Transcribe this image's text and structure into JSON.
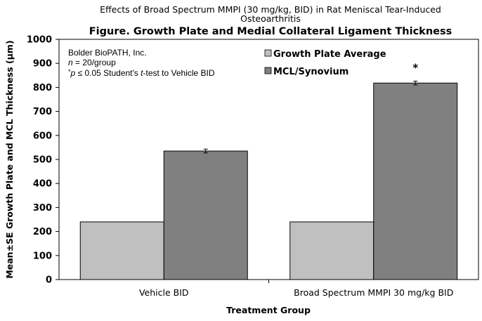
{
  "chart_data": {
    "type": "bar",
    "subtitle_lines": [
      "Effects of Broad Spectrum MMPI (30 mg/kg, BID) in Rat Meniscal Tear-Induced",
      "Osteoarthritis"
    ],
    "title": "Figure. Growth Plate and Medial Collateral Ligament Thickness",
    "xlabel": "Treatment Group",
    "ylabel": "Mean±SE Growth Plate and MCL Thickness (μm)",
    "ylim": [
      0,
      1000
    ],
    "yticks": [
      "0",
      "100",
      "200",
      "300",
      "400",
      "500",
      "600",
      "700",
      "800",
      "900",
      "1000"
    ],
    "categories": [
      "Vehicle BID",
      "Broad Spectrum MMPI 30 mg/kg BID"
    ],
    "series": [
      {
        "name": "Growth Plate Average",
        "values": [
          240,
          240
        ],
        "errors": [
          0,
          0
        ],
        "color": "#c0c0c0"
      },
      {
        "name": "MCL/Synovium",
        "values": [
          535,
          818
        ],
        "errors": [
          8,
          8
        ],
        "color": "#808080"
      }
    ],
    "annotations": [
      {
        "category_index": 1,
        "series_index": 1,
        "text": "*"
      }
    ],
    "notes": {
      "line1": "Bolder BioPATH, Inc.",
      "line2_italic": "n",
      "line2_rest": " = 20/group",
      "line3_pre": "*",
      "line3_p": "p",
      "line3_mid": " ≤ 0.05 Student's ",
      "line3_t": "t",
      "line3_post": "-test to Vehicle BID"
    },
    "legend_position": "top-right",
    "grid": false
  }
}
